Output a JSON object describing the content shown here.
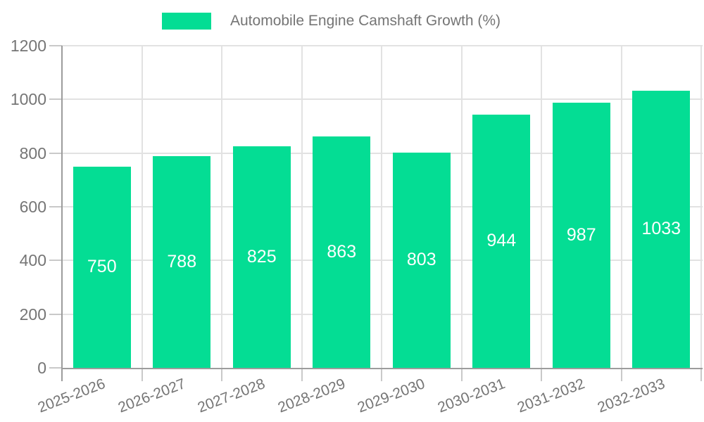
{
  "colors": {
    "bar": "#04dd94",
    "grid": "#e2e2e2",
    "axis_line": "#9c9c9c",
    "tick": "#c9c9c9",
    "axis_label_text": "#757575",
    "value_label_text": "#ffffff",
    "background": "#ffffff"
  },
  "legend": {
    "swatch_icon": "bar-series-swatch",
    "label": "Automobile Engine Camshaft Growth (%)"
  },
  "chart_data": {
    "type": "bar",
    "title": "Automobile Engine Camshaft Growth (%)",
    "categories": [
      "2025-2026",
      "2026-2027",
      "2027-2028",
      "2028-2029",
      "2029-2030",
      "2030-2031",
      "2031-2032",
      "2032-2033"
    ],
    "series": [
      {
        "name": "Automobile Engine Camshaft Growth (%)",
        "values": [
          750,
          788,
          825,
          863,
          803,
          944,
          987,
          1033
        ]
      }
    ],
    "values": [
      750,
      788,
      825,
      863,
      803,
      944,
      987,
      1033
    ],
    "value_labels": [
      "750",
      "788",
      "825",
      "863",
      "803",
      "944",
      "987",
      "1033"
    ],
    "yticks": [
      0,
      200,
      400,
      600,
      800,
      1000,
      1200
    ],
    "ylim": [
      0,
      1200
    ],
    "xlabel": "",
    "ylabel": "",
    "grid": true,
    "legend_position": "top-center",
    "x_label_rotation_deg": -21,
    "value_label_position": "inside-center"
  }
}
